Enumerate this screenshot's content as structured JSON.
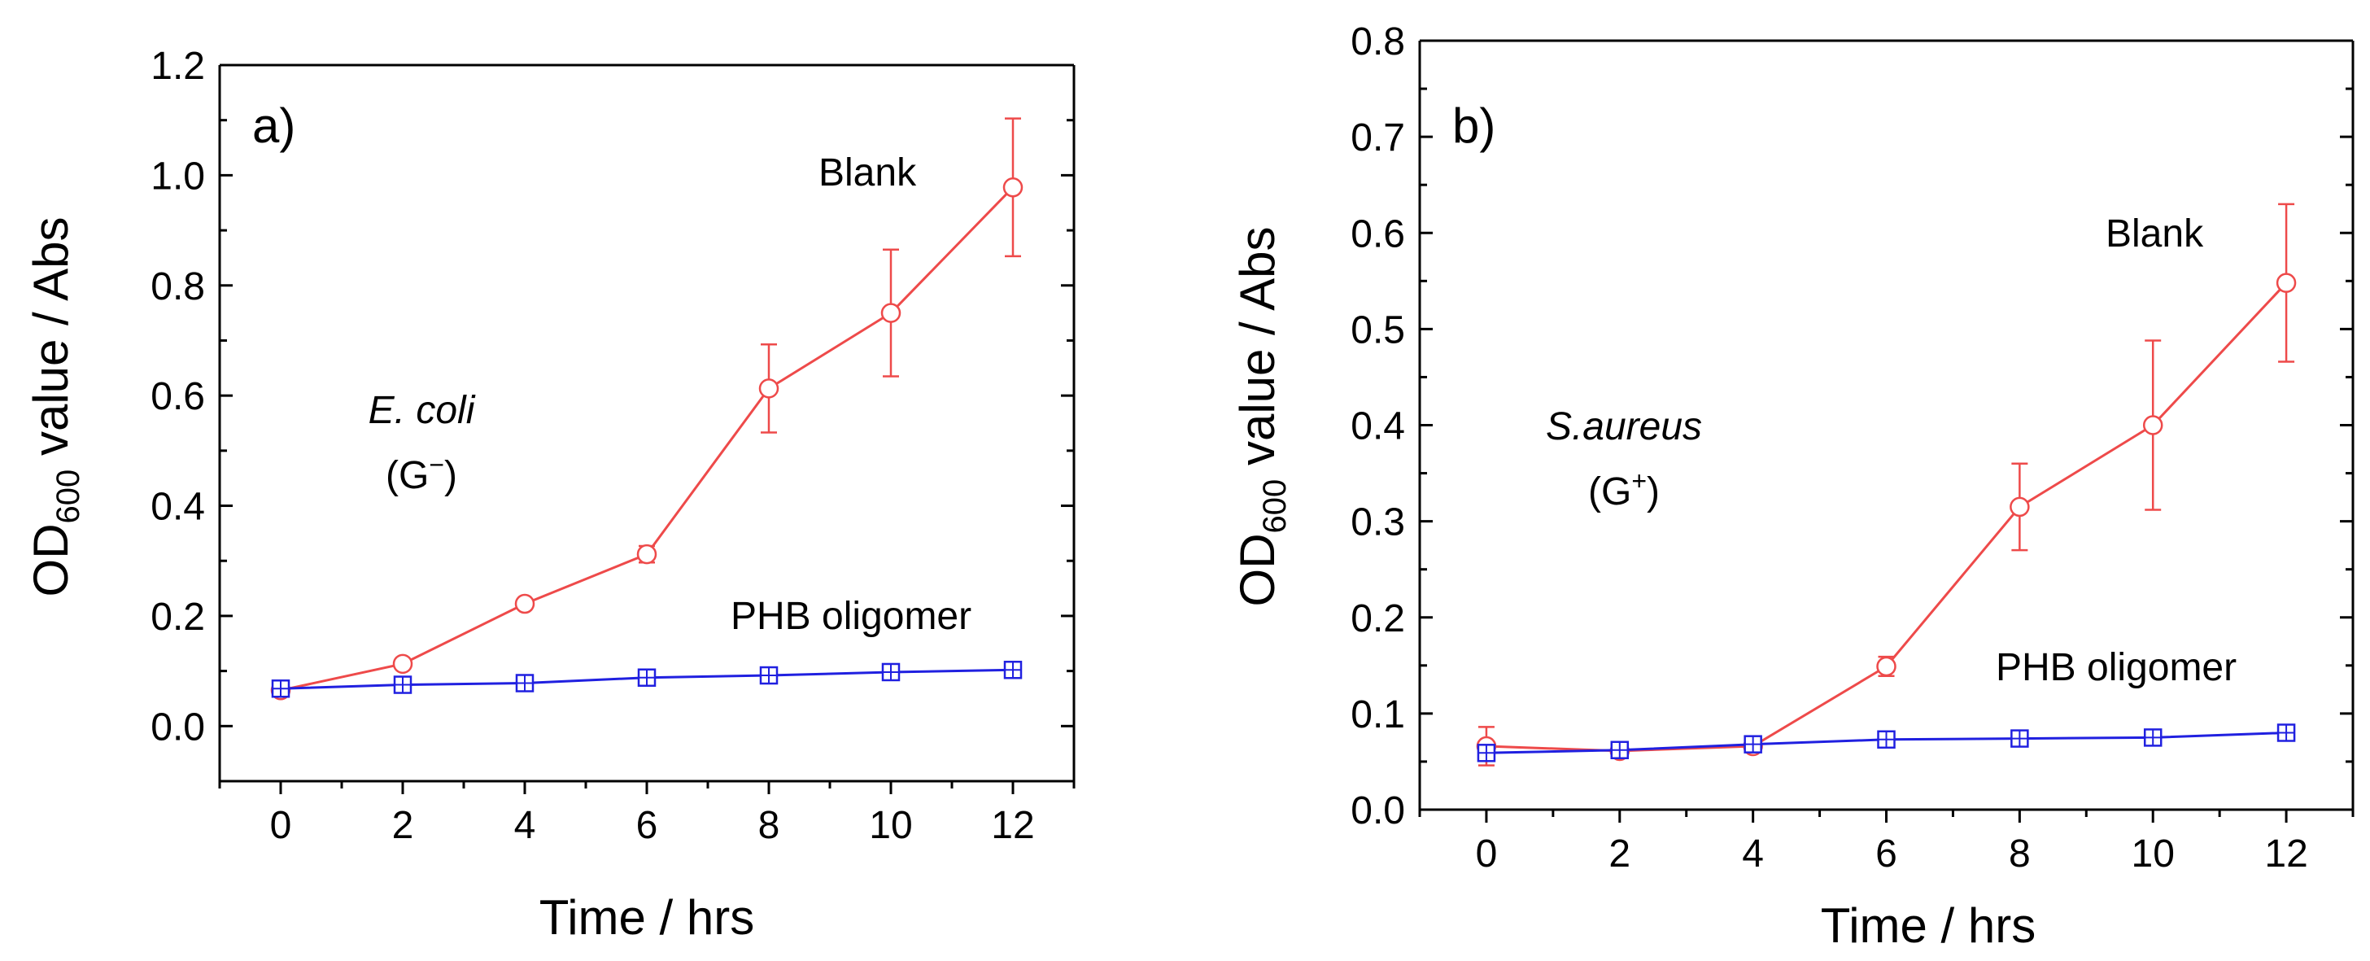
{
  "colors": {
    "blank": "#ee4a4a",
    "phb": "#2020e0"
  },
  "chart_data": [
    {
      "panel_label": "a)",
      "type": "line",
      "x": [
        0,
        2,
        4,
        6,
        8,
        10,
        12
      ],
      "xlim": [
        -1,
        13
      ],
      "xticks": [
        0,
        2,
        4,
        6,
        8,
        10,
        12
      ],
      "ylim": [
        -0.1,
        1.2
      ],
      "yticks": [
        0.0,
        0.2,
        0.4,
        0.6,
        0.8,
        1.0,
        1.2
      ],
      "ytick_labels": [
        "0.0",
        "0.2",
        "0.4",
        "0.6",
        "0.8",
        "1.0",
        "1.2"
      ],
      "xlabel": "Time / hrs",
      "ylabel_main": "OD",
      "ylabel_sub": "600",
      "ylabel_rest": " value / Abs",
      "organism": "E. coli",
      "gram": "(G",
      "gram_sup": "−",
      "gram_end": ")",
      "series": [
        {
          "name": "Blank",
          "marker": "circle",
          "values": [
            0.065,
            0.113,
            0.222,
            0.312,
            0.613,
            0.75,
            0.978
          ],
          "errors": [
            0.008,
            0.008,
            0.008,
            0.015,
            0.08,
            0.115,
            0.125
          ]
        },
        {
          "name": "PHB oligomer",
          "marker": "square",
          "values": [
            0.068,
            0.075,
            0.078,
            0.088,
            0.092,
            0.098,
            0.102
          ],
          "errors": [
            0.008,
            0.008,
            0.006,
            0.008,
            0.008,
            0.01,
            0.012
          ]
        }
      ]
    },
    {
      "panel_label": "b)",
      "type": "line",
      "x": [
        0,
        2,
        4,
        6,
        8,
        10,
        12
      ],
      "xlim": [
        -1,
        13
      ],
      "xticks": [
        0,
        2,
        4,
        6,
        8,
        10,
        12
      ],
      "ylim": [
        0.0,
        0.8
      ],
      "yticks": [
        0.0,
        0.1,
        0.2,
        0.3,
        0.4,
        0.5,
        0.6,
        0.7,
        0.8
      ],
      "ytick_labels": [
        "0.0",
        "0.1",
        "0.2",
        "0.3",
        "0.4",
        "0.5",
        "0.6",
        "0.7",
        "0.8"
      ],
      "xlabel": "Time / hrs",
      "ylabel_main": "OD",
      "ylabel_sub": "600",
      "ylabel_rest": " value / Abs",
      "organism": "S.aureus",
      "gram": "(G",
      "gram_sup": "+",
      "gram_end": ")",
      "series": [
        {
          "name": "Blank",
          "marker": "circle",
          "values": [
            0.066,
            0.061,
            0.066,
            0.149,
            0.315,
            0.4,
            0.548
          ],
          "errors": [
            0.02,
            0.006,
            0.006,
            0.01,
            0.045,
            0.088,
            0.082
          ]
        },
        {
          "name": "PHB oligomer",
          "marker": "square",
          "values": [
            0.059,
            0.062,
            0.068,
            0.073,
            0.074,
            0.075,
            0.08
          ],
          "errors": [
            0.006,
            0.005,
            0.005,
            0.006,
            0.006,
            0.006,
            0.008
          ]
        }
      ]
    }
  ]
}
